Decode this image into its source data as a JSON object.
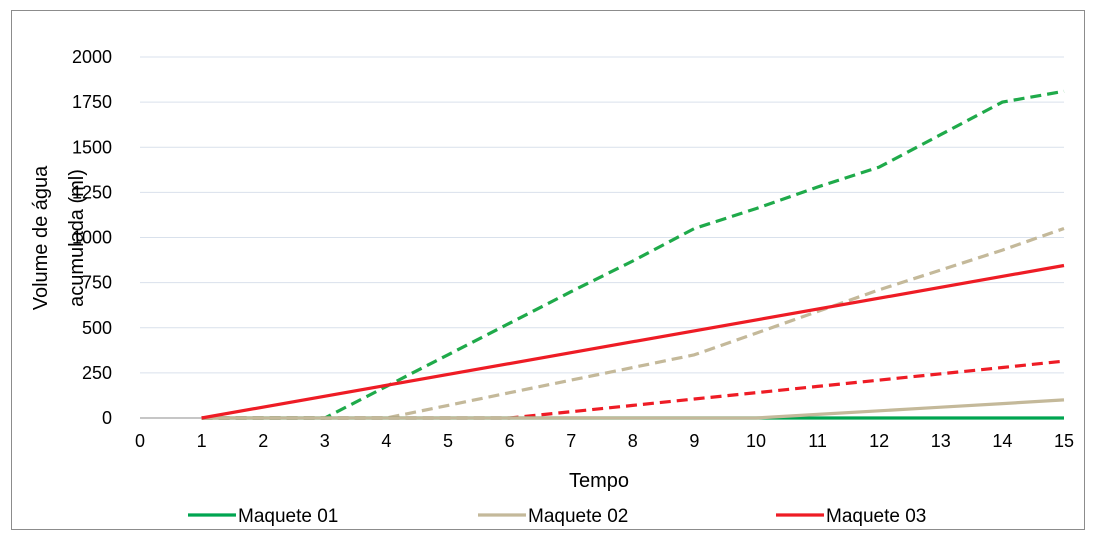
{
  "chart_data": {
    "type": "line",
    "xlabel": "Tempo",
    "ylabel_lines": [
      "Volume de água",
      "acumulada (ml)"
    ],
    "xlim": [
      0,
      15
    ],
    "ylim": [
      0,
      2000
    ],
    "xticks": [
      0,
      1,
      2,
      3,
      4,
      5,
      6,
      7,
      8,
      9,
      10,
      11,
      12,
      13,
      14,
      15
    ],
    "yticks": [
      0,
      250,
      500,
      750,
      1000,
      1250,
      1500,
      1750,
      2000
    ],
    "grid": "horizontal",
    "legend_position": "bottom",
    "series": [
      {
        "name": "Maquete 01",
        "color": "#00a550",
        "style": "solid",
        "x": [
          1,
          2,
          3,
          4,
          5,
          6,
          7,
          8,
          9,
          10,
          11,
          12,
          13,
          14,
          15
        ],
        "y": [
          0,
          0,
          0,
          0,
          0,
          0,
          0,
          0,
          0,
          0,
          0,
          0,
          0,
          0,
          0
        ]
      },
      {
        "name": "Maquete 02",
        "color": "#c4b99a",
        "style": "solid",
        "x": [
          1,
          2,
          3,
          4,
          5,
          6,
          7,
          8,
          9,
          10,
          11,
          12,
          13,
          14,
          15
        ],
        "y": [
          0,
          0,
          0,
          0,
          0,
          0,
          0,
          0,
          0,
          0,
          20,
          40,
          60,
          80,
          100
        ]
      },
      {
        "name": "Maquete 03",
        "color": "#ee1c25",
        "style": "solid",
        "x": [
          1,
          15
        ],
        "y": [
          0,
          845
        ]
      },
      {
        "name": "",
        "color": "#1faa4a",
        "style": "dashed",
        "x": [
          1,
          2,
          3,
          4,
          5,
          6,
          7,
          8,
          9,
          10,
          11,
          12,
          13,
          14,
          15
        ],
        "y": [
          0,
          0,
          0,
          175,
          350,
          525,
          700,
          870,
          1050,
          1160,
          1280,
          1390,
          1570,
          1750,
          1810
        ]
      },
      {
        "name": "",
        "color": "#c4b99a",
        "style": "dashed",
        "x": [
          1,
          2,
          3,
          4,
          5,
          6,
          7,
          8,
          9,
          10,
          11,
          12,
          13,
          14,
          15
        ],
        "y": [
          0,
          0,
          0,
          0,
          70,
          140,
          210,
          280,
          350,
          470,
          590,
          710,
          820,
          930,
          1050
        ]
      },
      {
        "name": "",
        "color": "#ee1c25",
        "style": "dashed",
        "x": [
          1,
          2,
          3,
          4,
          5,
          6,
          7,
          8,
          9,
          10,
          11,
          12,
          13,
          14,
          15
        ],
        "y": [
          0,
          0,
          0,
          0,
          0,
          0,
          35,
          70,
          105,
          140,
          175,
          210,
          245,
          280,
          315
        ]
      }
    ]
  }
}
